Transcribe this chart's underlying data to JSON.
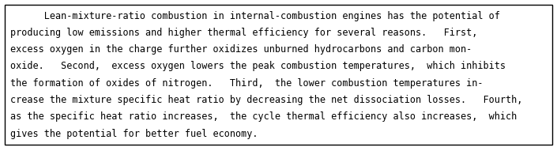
{
  "text_lines": [
    "      Lean-mixture-ratio combustion in internal-combustion engines has the potential of",
    "producing low emissions and higher thermal efficiency for several reasons.   First,",
    "excess oxygen in the charge further oxidizes unburned hydrocarbons and carbon mon-",
    "oxide.   Second,  excess oxygen lowers the peak combustion temperatures,  which inhibits",
    "the formation of oxides of nitrogen.   Third,  the lower combustion temperatures in-",
    "crease the mixture specific heat ratio by decreasing the net dissociation losses.   Fourth,",
    "as the specific heat ratio increases,  the cycle thermal efficiency also increases,  which",
    "gives the potential for better fuel economy."
  ],
  "background_color": "#ffffff",
  "text_color": "#000000",
  "border_color": "#000000",
  "font_size": 8.5,
  "font_family": "monospace"
}
